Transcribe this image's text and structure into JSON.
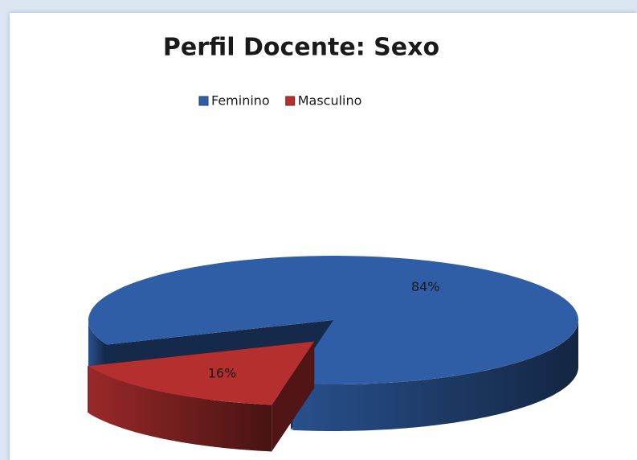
{
  "chart_data": {
    "type": "pie3d",
    "title": "Perfil Docente: Sexo",
    "categories": [
      "Feminino",
      "Masculino"
    ],
    "values": [
      84,
      16
    ],
    "value_labels": [
      "84%",
      "16%"
    ],
    "colors": [
      "#2f5ea6",
      "#b52f2f"
    ],
    "legend": "top"
  }
}
